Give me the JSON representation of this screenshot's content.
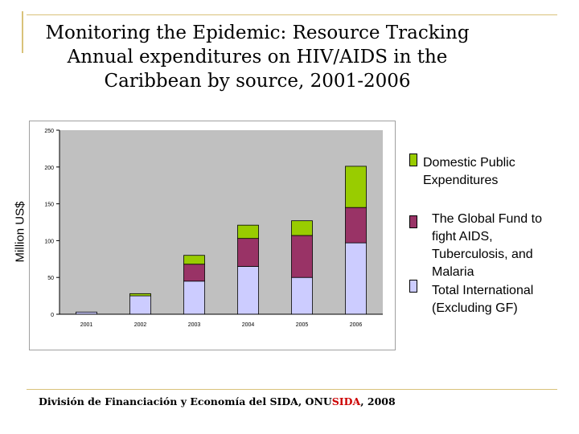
{
  "title_lines": [
    "Monitoring the Epidemic: Resource Tracking",
    "Annual expenditures on HIV/AIDS in the",
    "Caribbean by source, 2001-2006"
  ],
  "source": {
    "prefix": "División de Financiación y Economía del SIDA, ONU",
    "highlight": "SIDA",
    "suffix": ", 2008"
  },
  "chart_data": {
    "type": "bar",
    "stacked": true,
    "categories": [
      "2001",
      "2002",
      "2003",
      "2004",
      "2005",
      "2006"
    ],
    "series": [
      {
        "name": "Total International (Excluding GF)",
        "values": [
          3,
          25,
          45,
          65,
          50,
          97
        ],
        "color": "#ccccff"
      },
      {
        "name": "The Global Fund to fight AIDS, Tuberculosis, and Malaria",
        "values": [
          0,
          0,
          23,
          38,
          57,
          48
        ],
        "color": "#993366"
      },
      {
        "name": "Domestic Public Expenditures",
        "values": [
          0,
          3,
          12,
          18,
          20,
          56
        ],
        "color": "#99cc00"
      }
    ],
    "ylabel": "Million US$",
    "ylim": [
      0,
      250
    ],
    "yticks": [
      "0",
      "50",
      "100",
      "150",
      "200",
      "250"
    ],
    "grid": false,
    "legend_position": "right"
  }
}
